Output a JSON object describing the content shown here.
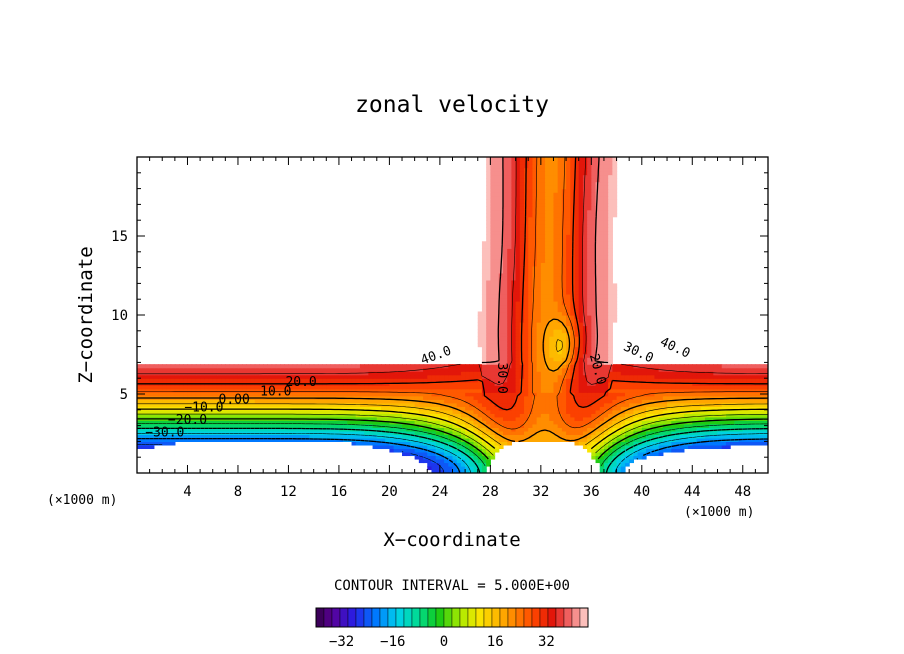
{
  "chart_data": {
    "type": "heatmap",
    "title": "zonal velocity",
    "xlabel": "X−coordinate",
    "ylabel": "Z−coordinate",
    "x_unit": "(×1000 m)",
    "z_unit": "(×1000 m)",
    "xlim": [
      0,
      50
    ],
    "ylim": [
      0,
      20
    ],
    "x_ticks": [
      4,
      8,
      12,
      16,
      20,
      24,
      28,
      32,
      36,
      40,
      44,
      48
    ],
    "y_ticks": [
      5,
      10,
      15
    ],
    "contour_interval_text": "CONTOUR INTERVAL = 5.000E+00",
    "contour_labels": [
      {
        "text": "40.0",
        "x": 23.8,
        "z": 7.2
      },
      {
        "text": "30.0",
        "x": 28.6,
        "z": 6.0
      },
      {
        "text": "20.0",
        "x": 36.2,
        "z": 6.5
      },
      {
        "text": "30.0",
        "x": 39.6,
        "z": 7.4
      },
      {
        "text": "40.0",
        "x": 42.5,
        "z": 7.7
      },
      {
        "text": "20.0",
        "x": 13.0,
        "z": 5.5
      },
      {
        "text": "10.0",
        "x": 11.0,
        "z": 4.9
      },
      {
        "text": "0.00",
        "x": 7.7,
        "z": 4.4
      },
      {
        "text": "−10.0",
        "x": 5.3,
        "z": 3.9
      },
      {
        "text": "−20.0",
        "x": 4.0,
        "z": 3.1
      },
      {
        "text": "−30.0",
        "x": 2.2,
        "z": 2.3
      }
    ],
    "colorbar": {
      "ticks": [
        -32,
        -16,
        0,
        16,
        32
      ],
      "tick_labels": [
        "−32",
        "−16",
        "0",
        "16",
        "32"
      ],
      "range": [
        -40,
        45
      ]
    }
  }
}
